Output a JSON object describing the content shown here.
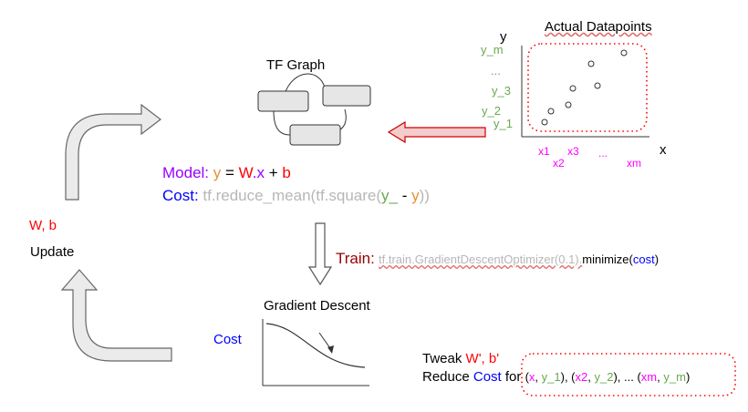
{
  "colors": {
    "purple": "#9900ff",
    "orange": "#e69138",
    "red": "#ff0000",
    "dark_red": "#990000",
    "blue": "#0000ff",
    "green": "#6aa84f",
    "magenta": "#ff00ff",
    "gray": "#b7b7b7",
    "dark": "#000000"
  },
  "tf_graph": {
    "title": "TF Graph"
  },
  "datapoints": {
    "title": "Actual Datapoints",
    "y_axis": "y",
    "x_axis": "x",
    "y_labels": [
      "y_m",
      "...",
      "y_3",
      "y_2",
      "y_1"
    ],
    "x_labels": [
      "x1",
      "x2",
      "x3",
      "...",
      "xm"
    ]
  },
  "model": {
    "label": "Model:",
    "y": "y",
    "eq": " = ",
    "W": "W",
    "dot_x": ".x",
    "plus": " + ",
    "b": "b"
  },
  "cost": {
    "label": "Cost:",
    "fn1": "tf.reduce_mean(",
    "fn2": "tf.square(",
    "y_": "y_",
    "minus": " - ",
    "y": "y",
    "close": "))"
  },
  "train": {
    "label": "Train:",
    "call": "tf.train.GradientDescentOptimizer(0.1).",
    "minimize": "minimize(",
    "cost": "cost",
    "close": ")"
  },
  "gradient": {
    "title": "Gradient Descent",
    "cost_label": "Cost"
  },
  "update": {
    "wb": "W, b",
    "label": "Update"
  },
  "tweak": {
    "line1_prefix": "Tweak ",
    "line1_vals": "W', b'",
    "line2_reduce": "Reduce ",
    "line2_cost": "Cost",
    "line2_for": " for ",
    "pairs": [
      {
        "open": "(",
        "x": "x",
        "comma": ", ",
        "y": "y_1",
        "close": "), "
      },
      {
        "open": "(",
        "x": "x2",
        "comma": ", ",
        "y": "y_2",
        "close": "), ... "
      },
      {
        "open": "(",
        "x": "xm",
        "comma": ", ",
        "y": "y_m",
        "close": ")"
      }
    ]
  }
}
